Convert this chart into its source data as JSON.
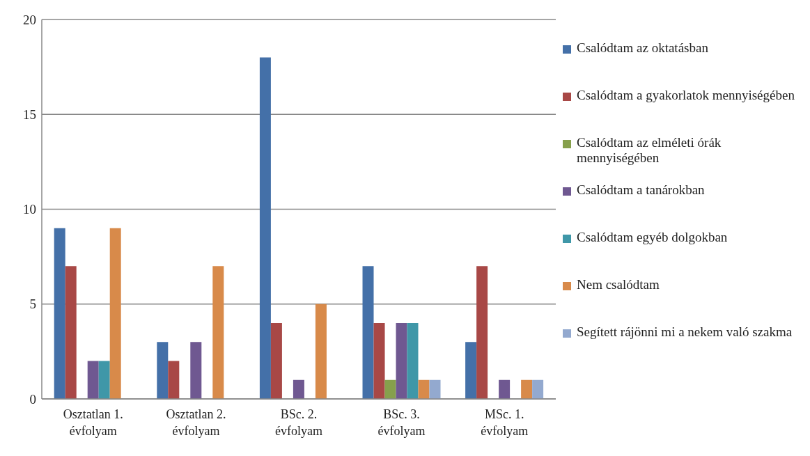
{
  "chart_data": {
    "type": "bar",
    "categories": [
      "Osztatlan 1. évfolyam",
      "Osztatlan 2. évfolyam",
      "BSc. 2. évfolyam",
      "BSc. 3. évfolyam",
      "MSc. 1. évfolyam"
    ],
    "series": [
      {
        "name": "Csalódtam az oktatásban",
        "color": "#4470a8",
        "values": [
          9,
          3,
          18,
          7,
          3
        ]
      },
      {
        "name": "Csalódtam a gyakorlatok mennyiségében",
        "color": "#a84846",
        "values": [
          7,
          2,
          4,
          4,
          7
        ]
      },
      {
        "name": "Csalódtam az elméleti órák mennyiségében",
        "color": "#86a04c",
        "values": [
          0,
          0,
          0,
          1,
          0
        ]
      },
      {
        "name": "Csalódtam a tanárokban",
        "color": "#6f5891",
        "values": [
          2,
          3,
          1,
          4,
          1
        ]
      },
      {
        "name": "Csalódtam egyéb dolgokban",
        "color": "#3f97a8",
        "values": [
          2,
          0,
          0,
          4,
          0
        ]
      },
      {
        "name": "Nem csalódtam",
        "color": "#d88a4a",
        "values": [
          9,
          7,
          5,
          1,
          1
        ]
      },
      {
        "name": "Segített rájönni mi a nekem való szakma",
        "color": "#93a9cf",
        "values": [
          0,
          0,
          0,
          1,
          1
        ]
      }
    ],
    "ylim": [
      0,
      20
    ],
    "yticks": [
      0,
      5,
      10,
      15,
      20
    ],
    "grid": "y",
    "legend": "right"
  }
}
